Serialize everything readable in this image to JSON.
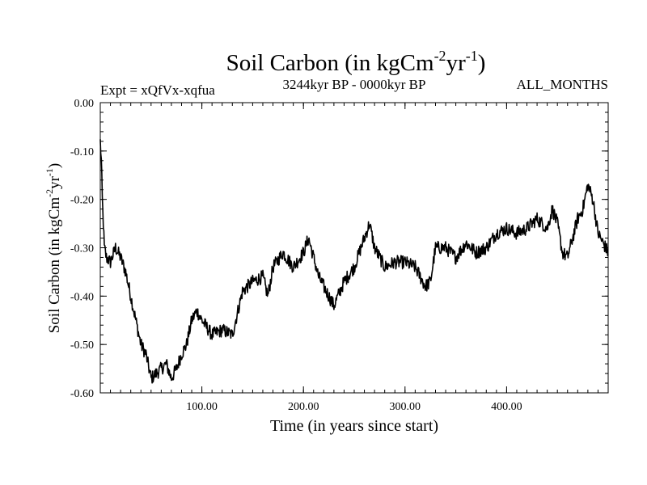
{
  "chart_data": {
    "type": "line",
    "title": {
      "main": "Soil Carbon (in kgCm",
      "sup1": "-2",
      "mid": "yr",
      "sup2": "-1",
      "end": ")"
    },
    "subtitle_left": "Expt = xQfVx-xqfua",
    "subtitle_center": "3244kyr BP - 0000kyr BP",
    "subtitle_right": "ALL_MONTHS",
    "xlabel": "Time (in years since start)",
    "ylabel": {
      "main": "Soil Carbon (in kgCm",
      "sup1": "-2",
      "mid": "yr",
      "sup2": "-1",
      "end": ")"
    },
    "xlim": [
      0,
      500
    ],
    "ylim": [
      -0.6,
      0.0
    ],
    "x_ticks": [
      100,
      200,
      300,
      400
    ],
    "x_tick_labels": [
      "100.00",
      "200.00",
      "300.00",
      "400.00"
    ],
    "y_ticks": [
      0.0,
      -0.1,
      -0.2,
      -0.3,
      -0.4,
      -0.5,
      -0.6
    ],
    "y_tick_labels": [
      "0.00",
      "-0.10",
      "-0.20",
      "-0.30",
      "-0.40",
      "-0.50",
      "-0.60"
    ],
    "line_color": "#000000",
    "series": [
      {
        "name": "Soil Carbon",
        "x": [
          0,
          1,
          2,
          4,
          6,
          10,
          15,
          20,
          25,
          30,
          35,
          40,
          45,
          50,
          55,
          60,
          65,
          70,
          75,
          80,
          85,
          90,
          95,
          100,
          110,
          120,
          130,
          140,
          150,
          160,
          165,
          170,
          180,
          190,
          200,
          205,
          210,
          215,
          220,
          230,
          240,
          250,
          260,
          265,
          270,
          280,
          290,
          300,
          310,
          320,
          325,
          330,
          340,
          350,
          360,
          370,
          380,
          390,
          400,
          410,
          420,
          430,
          440,
          445,
          450,
          455,
          460,
          470,
          475,
          480,
          485,
          490,
          495,
          500
        ],
        "values": [
          -0.08,
          -0.12,
          -0.2,
          -0.3,
          -0.32,
          -0.33,
          -0.3,
          -0.32,
          -0.35,
          -0.4,
          -0.45,
          -0.5,
          -0.52,
          -0.57,
          -0.56,
          -0.55,
          -0.54,
          -0.57,
          -0.55,
          -0.52,
          -0.5,
          -0.45,
          -0.43,
          -0.45,
          -0.48,
          -0.47,
          -0.48,
          -0.39,
          -0.37,
          -0.36,
          -0.4,
          -0.34,
          -0.31,
          -0.34,
          -0.31,
          -0.28,
          -0.32,
          -0.36,
          -0.38,
          -0.42,
          -0.37,
          -0.34,
          -0.28,
          -0.25,
          -0.3,
          -0.34,
          -0.33,
          -0.33,
          -0.34,
          -0.38,
          -0.37,
          -0.3,
          -0.3,
          -0.32,
          -0.29,
          -0.31,
          -0.3,
          -0.27,
          -0.26,
          -0.27,
          -0.26,
          -0.24,
          -0.26,
          -0.22,
          -0.25,
          -0.31,
          -0.32,
          -0.24,
          -0.22,
          -0.17,
          -0.2,
          -0.27,
          -0.29,
          -0.31
        ]
      }
    ]
  }
}
